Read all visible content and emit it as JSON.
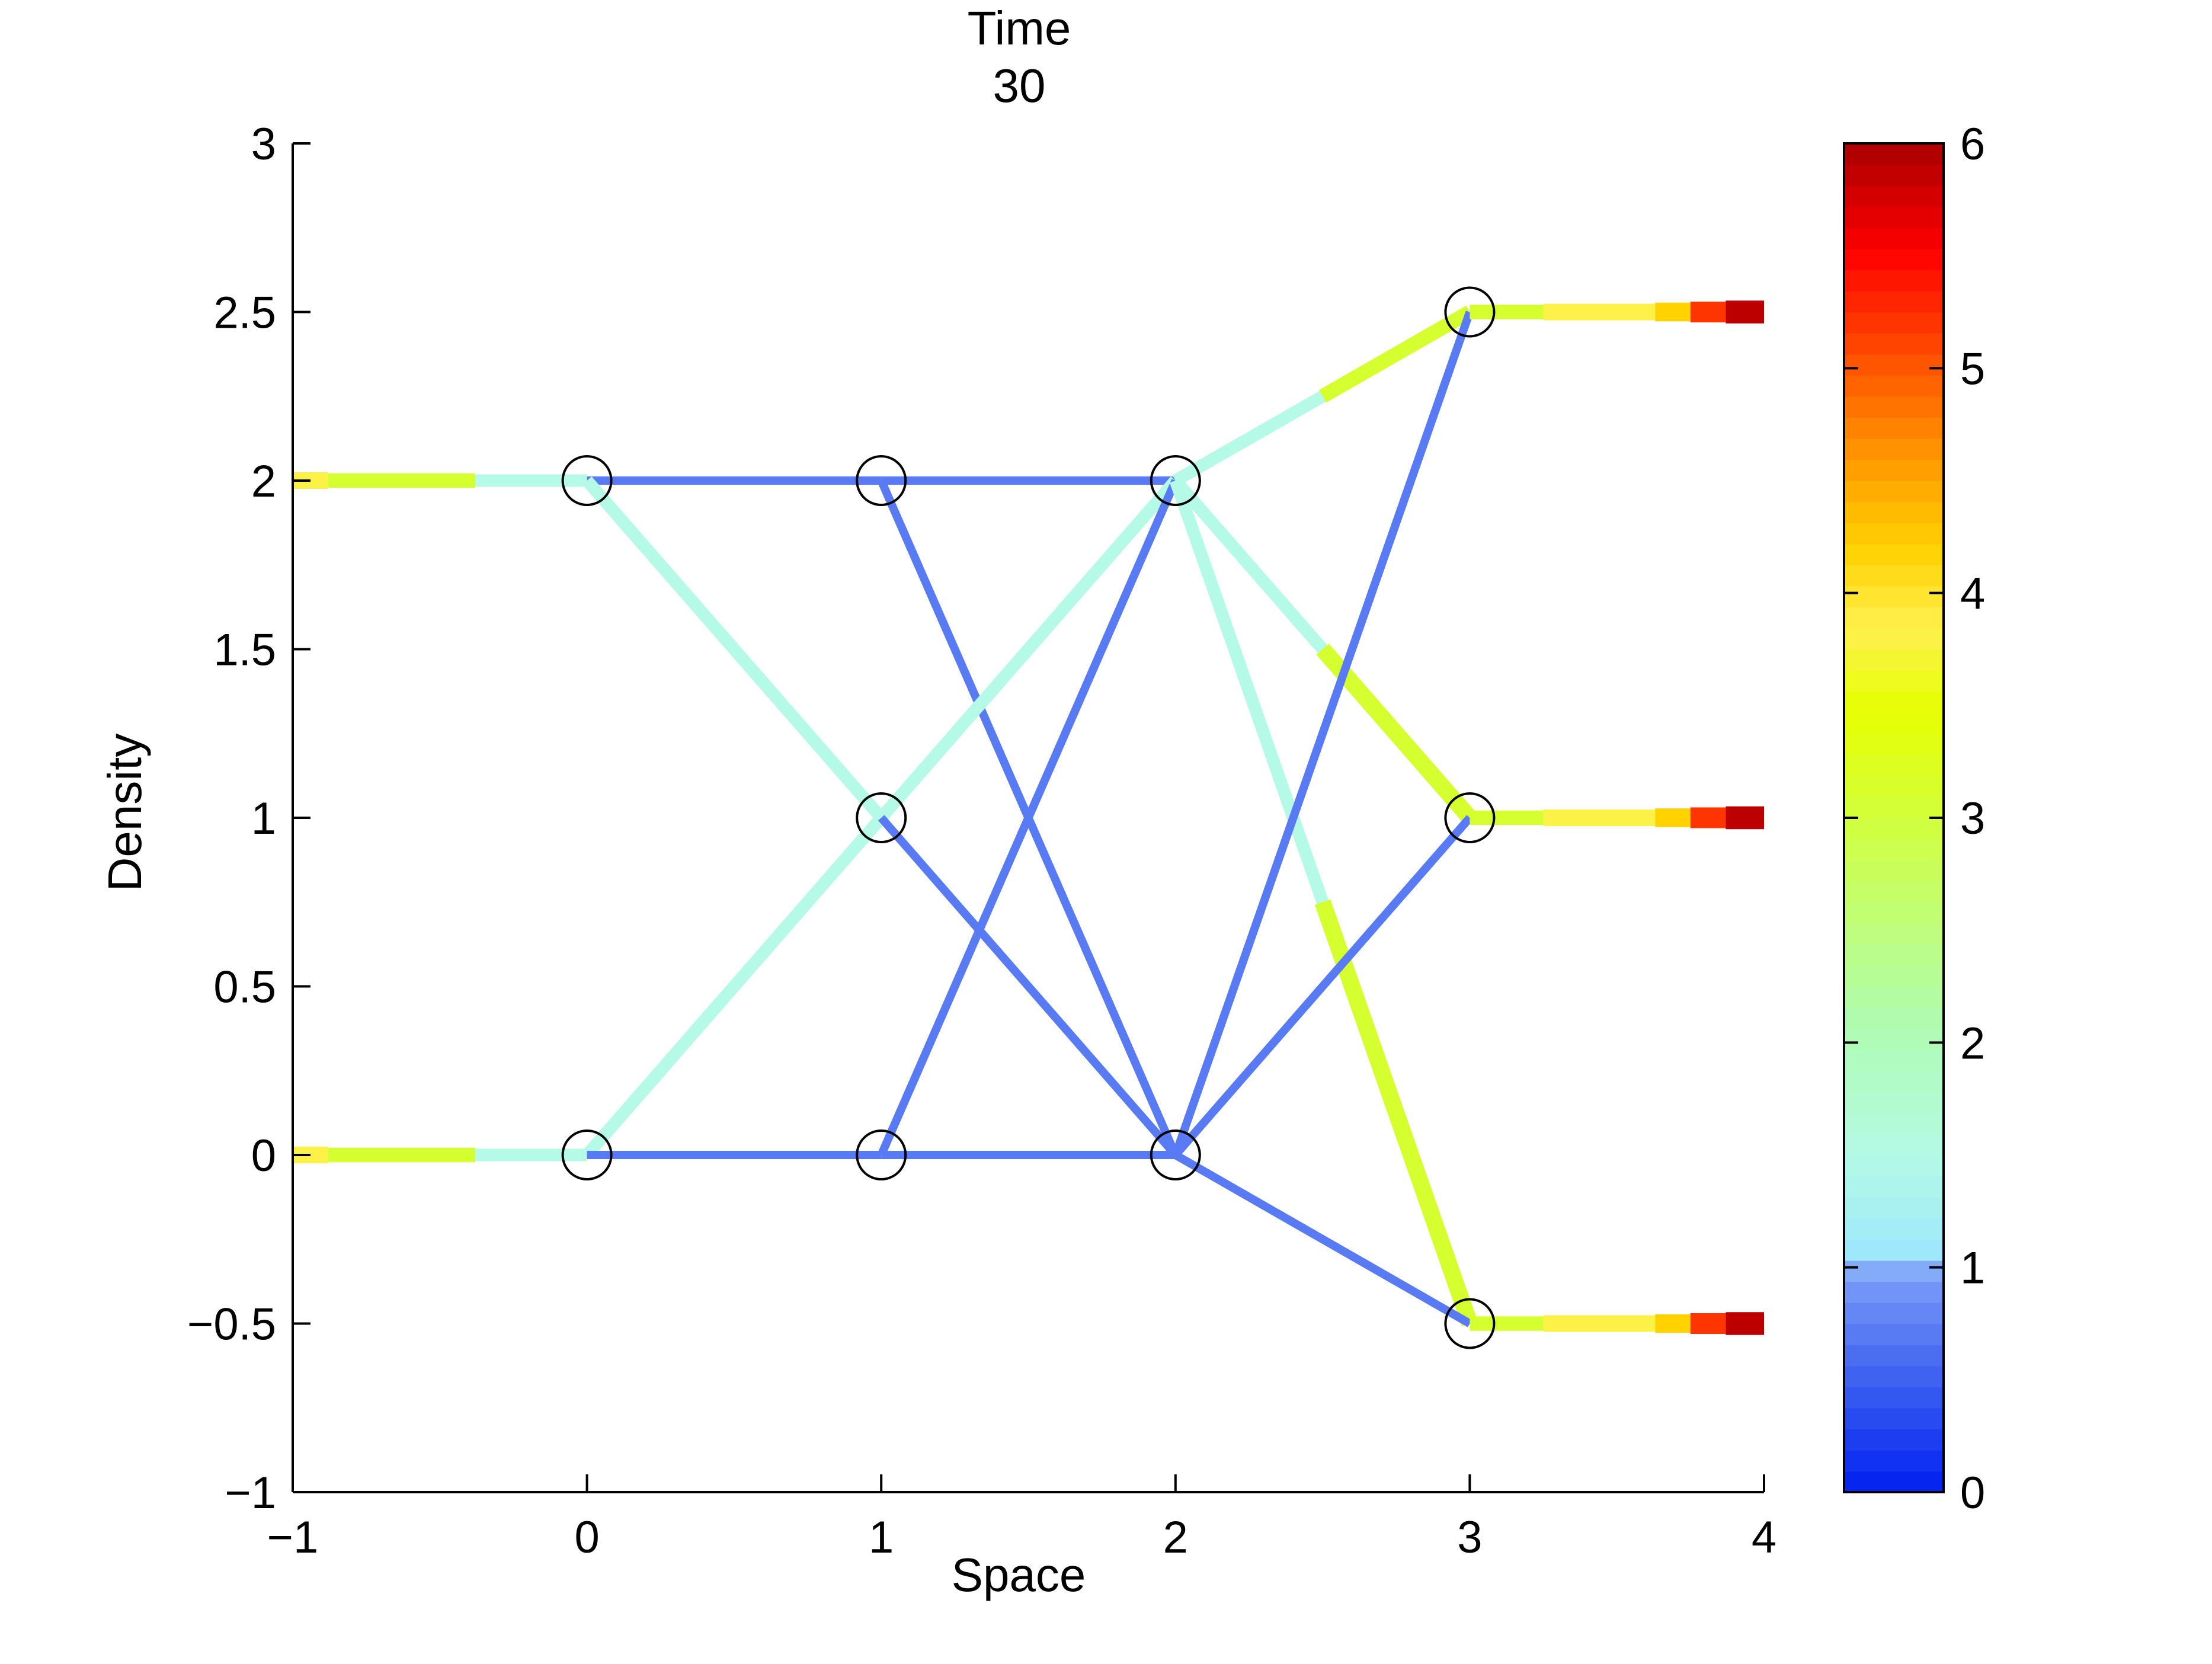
{
  "chart_data": {
    "type": "line",
    "title_lines": [
      "Time",
      "30"
    ],
    "xlabel": "Space",
    "ylabel": "Density",
    "xlim": [
      -1,
      4
    ],
    "ylim": [
      -1,
      3
    ],
    "xticks": [
      -1,
      0,
      1,
      2,
      3,
      4
    ],
    "yticks": [
      -1,
      -0.5,
      0,
      0.5,
      1,
      1.5,
      2,
      2.5,
      3
    ],
    "grid": false,
    "colorbar": {
      "range": [
        0,
        6
      ],
      "ticks": [
        0,
        1,
        2,
        3,
        4,
        5,
        6
      ],
      "colormap": "jet"
    },
    "nodes": [
      {
        "x": 0,
        "y": 2
      },
      {
        "x": 0,
        "y": 0
      },
      {
        "x": 1,
        "y": 2
      },
      {
        "x": 1,
        "y": 1
      },
      {
        "x": 1,
        "y": 0
      },
      {
        "x": 2,
        "y": 2
      },
      {
        "x": 2,
        "y": 0
      },
      {
        "x": 3,
        "y": 2.5
      },
      {
        "x": 3,
        "y": 1
      },
      {
        "x": 3,
        "y": -0.5
      }
    ],
    "segments": [
      {
        "x": [
          -1,
          -0.88
        ],
        "y": [
          2,
          2
        ],
        "value": 3.8,
        "width": 4
      },
      {
        "x": [
          -0.88,
          -0.38
        ],
        "y": [
          2,
          2
        ],
        "value": 3.1,
        "width": 3.5
      },
      {
        "x": [
          -0.38,
          0
        ],
        "y": [
          2,
          2
        ],
        "value": 1.5,
        "width": 3
      },
      {
        "x": [
          -1,
          -0.88
        ],
        "y": [
          0,
          0
        ],
        "value": 3.8,
        "width": 4
      },
      {
        "x": [
          -0.88,
          -0.38
        ],
        "y": [
          0,
          0
        ],
        "value": 3.1,
        "width": 3.5
      },
      {
        "x": [
          -0.38,
          0
        ],
        "y": [
          0,
          0
        ],
        "value": 1.5,
        "width": 3
      },
      {
        "x": [
          0,
          1
        ],
        "y": [
          2,
          2
        ],
        "value": 0.7,
        "width": 2
      },
      {
        "x": [
          0,
          1
        ],
        "y": [
          2,
          1
        ],
        "value": 1.5,
        "width": 3
      },
      {
        "x": [
          0,
          1
        ],
        "y": [
          0,
          1
        ],
        "value": 1.5,
        "width": 3
      },
      {
        "x": [
          0,
          1
        ],
        "y": [
          0,
          0
        ],
        "value": 0.7,
        "width": 2
      },
      {
        "x": [
          1,
          2
        ],
        "y": [
          2,
          2
        ],
        "value": 0.7,
        "width": 2
      },
      {
        "x": [
          1,
          2
        ],
        "y": [
          2,
          0
        ],
        "value": 0.7,
        "width": 2
      },
      {
        "x": [
          1,
          2
        ],
        "y": [
          1,
          2
        ],
        "value": 1.5,
        "width": 3
      },
      {
        "x": [
          1,
          2
        ],
        "y": [
          1,
          0
        ],
        "value": 0.7,
        "width": 2
      },
      {
        "x": [
          1,
          2
        ],
        "y": [
          0,
          2
        ],
        "value": 0.7,
        "width": 2
      },
      {
        "x": [
          1,
          2
        ],
        "y": [
          0,
          0
        ],
        "value": 0.7,
        "width": 2
      },
      {
        "x": [
          2,
          2.5
        ],
        "y": [
          2,
          2.25
        ],
        "value": 1.5,
        "width": 3
      },
      {
        "x": [
          2.5,
          3
        ],
        "y": [
          2.25,
          2.5
        ],
        "value": 3.1,
        "width": 3.5
      },
      {
        "x": [
          2,
          2.5
        ],
        "y": [
          2,
          1.5
        ],
        "value": 1.5,
        "width": 3
      },
      {
        "x": [
          2.5,
          3
        ],
        "y": [
          1.5,
          1
        ],
        "value": 3.1,
        "width": 4
      },
      {
        "x": [
          2,
          2.5
        ],
        "y": [
          2,
          0.75
        ],
        "value": 1.5,
        "width": 3
      },
      {
        "x": [
          2.5,
          3
        ],
        "y": [
          0.75,
          -0.5
        ],
        "value": 3.1,
        "width": 4
      },
      {
        "x": [
          2,
          3
        ],
        "y": [
          0,
          2.5
        ],
        "value": 0.7,
        "width": 2
      },
      {
        "x": [
          2,
          3
        ],
        "y": [
          0,
          1
        ],
        "value": 0.7,
        "width": 2
      },
      {
        "x": [
          2,
          3
        ],
        "y": [
          0,
          -0.5
        ],
        "value": 0.7,
        "width": 2
      },
      {
        "x": [
          3,
          3.25
        ],
        "y": [
          2.5,
          2.5
        ],
        "value": 3.1,
        "width": 3.5
      },
      {
        "x": [
          3.25,
          3.63
        ],
        "y": [
          2.5,
          2.5
        ],
        "value": 3.8,
        "width": 4
      },
      {
        "x": [
          3.63,
          3.75
        ],
        "y": [
          2.5,
          2.5
        ],
        "value": 4.2,
        "width": 4.5
      },
      {
        "x": [
          3.75,
          3.87
        ],
        "y": [
          2.5,
          2.5
        ],
        "value": 5.2,
        "width": 5
      },
      {
        "x": [
          3.87,
          4
        ],
        "y": [
          2.5,
          2.5
        ],
        "value": 5.9,
        "width": 5.5
      },
      {
        "x": [
          3,
          3.25
        ],
        "y": [
          1,
          1
        ],
        "value": 3.1,
        "width": 3.5
      },
      {
        "x": [
          3.25,
          3.63
        ],
        "y": [
          1,
          1
        ],
        "value": 3.8,
        "width": 4
      },
      {
        "x": [
          3.63,
          3.75
        ],
        "y": [
          1,
          1
        ],
        "value": 4.2,
        "width": 4.5
      },
      {
        "x": [
          3.75,
          3.87
        ],
        "y": [
          1,
          1
        ],
        "value": 5.2,
        "width": 5
      },
      {
        "x": [
          3.87,
          4
        ],
        "y": [
          1,
          1
        ],
        "value": 5.9,
        "width": 5.5
      },
      {
        "x": [
          3,
          3.25
        ],
        "y": [
          -0.5,
          -0.5
        ],
        "value": 3.1,
        "width": 3.5
      },
      {
        "x": [
          3.25,
          3.63
        ],
        "y": [
          -0.5,
          -0.5
        ],
        "value": 3.8,
        "width": 4
      },
      {
        "x": [
          3.63,
          3.75
        ],
        "y": [
          -0.5,
          -0.5
        ],
        "value": 4.2,
        "width": 4.5
      },
      {
        "x": [
          3.75,
          3.87
        ],
        "y": [
          -0.5,
          -0.5
        ],
        "value": 5.2,
        "width": 5
      },
      {
        "x": [
          3.87,
          4
        ],
        "y": [
          -0.5,
          -0.5
        ],
        "value": 5.9,
        "width": 5.5
      }
    ]
  }
}
